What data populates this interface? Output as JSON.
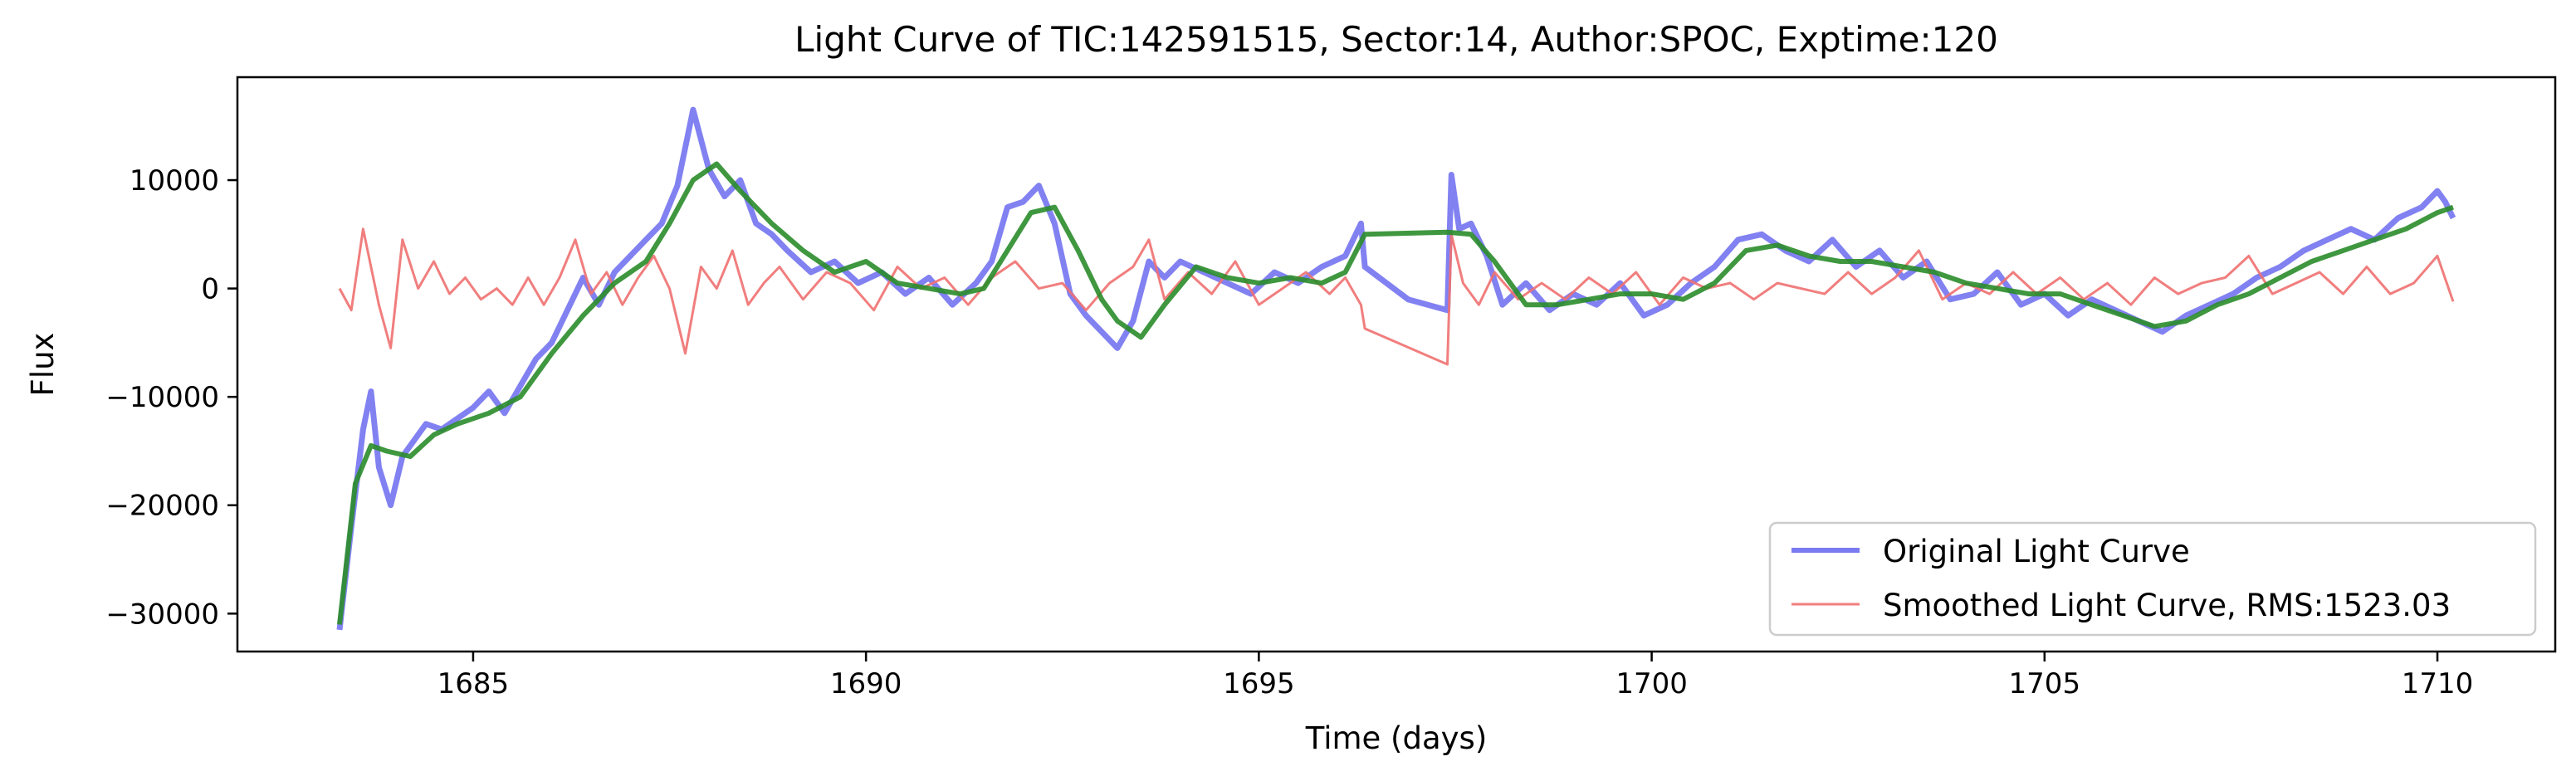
{
  "chart_data": {
    "type": "line",
    "title": "Light Curve of TIC:142591515, Sector:14, Author:SPOC, Exptime:120",
    "xlabel": "Time (days)",
    "ylabel": "Flux",
    "xlim": [
      1682.0,
      1711.5
    ],
    "ylim": [
      -33500,
      19500
    ],
    "xticks": [
      1685,
      1690,
      1695,
      1700,
      1705,
      1710
    ],
    "xtick_labels": [
      "1685",
      "1690",
      "1695",
      "1700",
      "1705",
      "1710"
    ],
    "yticks": [
      -30000,
      -20000,
      -10000,
      0,
      10000
    ],
    "ytick_labels": [
      "−30000",
      "−20000",
      "−10000",
      "0",
      "10000"
    ],
    "grid": false,
    "legend_position": "lower-right",
    "series": [
      {
        "name": "Original Light Curve",
        "color": "#6b6bf0",
        "x": [
          1683.3,
          1683.45,
          1683.6,
          1683.7,
          1683.8,
          1683.95,
          1684.1,
          1684.25,
          1684.4,
          1684.6,
          1684.8,
          1685.0,
          1685.2,
          1685.4,
          1685.6,
          1685.8,
          1686.0,
          1686.2,
          1686.4,
          1686.6,
          1686.8,
          1687.0,
          1687.2,
          1687.4,
          1687.6,
          1687.8,
          1688.0,
          1688.2,
          1688.4,
          1688.6,
          1688.8,
          1689.0,
          1689.3,
          1689.6,
          1689.9,
          1690.2,
          1690.5,
          1690.8,
          1691.1,
          1691.4,
          1691.6,
          1691.8,
          1692.0,
          1692.2,
          1692.4,
          1692.6,
          1692.8,
          1693.0,
          1693.2,
          1693.4,
          1693.6,
          1693.8,
          1694.0,
          1694.3,
          1694.6,
          1694.9,
          1695.2,
          1695.5,
          1695.8,
          1696.1,
          1696.3,
          1696.35,
          1696.9,
          1697.4,
          1697.45,
          1697.55,
          1697.7,
          1697.9,
          1698.1,
          1698.4,
          1698.7,
          1699.0,
          1699.3,
          1699.6,
          1699.9,
          1700.2,
          1700.5,
          1700.8,
          1701.1,
          1701.4,
          1701.7,
          1702.0,
          1702.3,
          1702.6,
          1702.9,
          1703.2,
          1703.5,
          1703.8,
          1704.1,
          1704.4,
          1704.7,
          1705.0,
          1705.3,
          1705.6,
          1705.9,
          1706.2,
          1706.5,
          1706.8,
          1707.1,
          1707.4,
          1707.7,
          1708.0,
          1708.3,
          1708.6,
          1708.9,
          1709.2,
          1709.5,
          1709.8,
          1710.0,
          1710.1,
          1710.2
        ],
        "y": [
          -31500,
          -22000,
          -13000,
          -9500,
          -16500,
          -20000,
          -15500,
          -14000,
          -12500,
          -13000,
          -12000,
          -11000,
          -9500,
          -11500,
          -9000,
          -6500,
          -5000,
          -2000,
          1000,
          -1500,
          1500,
          3000,
          4500,
          6000,
          9500,
          16500,
          11000,
          8500,
          10000,
          6000,
          5000,
          3500,
          1500,
          2500,
          500,
          1500,
          -500,
          1000,
          -1500,
          500,
          2500,
          7500,
          8000,
          9500,
          6000,
          -500,
          -2500,
          -4000,
          -5500,
          -3000,
          2500,
          1000,
          2500,
          1500,
          500,
          -500,
          1500,
          500,
          2000,
          3000,
          6000,
          2000,
          -1000,
          -2000,
          10500,
          5500,
          6000,
          3000,
          -1500,
          500,
          -2000,
          -500,
          -1500,
          500,
          -2500,
          -1500,
          500,
          2000,
          4500,
          5000,
          3500,
          2500,
          4500,
          2000,
          3500,
          1000,
          2500,
          -1000,
          -500,
          1500,
          -1500,
          -500,
          -2500,
          -1000,
          -2000,
          -3000,
          -4000,
          -2500,
          -1500,
          -500,
          1000,
          2000,
          3500,
          4500,
          5500,
          4500,
          6500,
          7500,
          9000,
          8000,
          6500
        ]
      },
      {
        "name": "Smoothed Light Curve, RMS:1523.03",
        "color": "#f07070",
        "x": [
          1683.3,
          1683.45,
          1683.6,
          1683.8,
          1683.95,
          1684.1,
          1684.3,
          1684.5,
          1684.7,
          1684.9,
          1685.1,
          1685.3,
          1685.5,
          1685.7,
          1685.9,
          1686.1,
          1686.3,
          1686.5,
          1686.7,
          1686.9,
          1687.1,
          1687.3,
          1687.5,
          1687.7,
          1687.9,
          1688.1,
          1688.3,
          1688.5,
          1688.7,
          1688.9,
          1689.2,
          1689.5,
          1689.8,
          1690.1,
          1690.4,
          1690.7,
          1691.0,
          1691.3,
          1691.6,
          1691.9,
          1692.2,
          1692.5,
          1692.8,
          1693.1,
          1693.4,
          1693.6,
          1693.8,
          1694.1,
          1694.4,
          1694.7,
          1695.0,
          1695.3,
          1695.6,
          1695.9,
          1696.1,
          1696.3,
          1696.35,
          1697.4,
          1697.45,
          1697.6,
          1697.8,
          1698.0,
          1698.3,
          1698.6,
          1698.9,
          1699.2,
          1699.5,
          1699.8,
          1700.1,
          1700.4,
          1700.7,
          1701.0,
          1701.3,
          1701.6,
          1701.9,
          1702.2,
          1702.5,
          1702.8,
          1703.1,
          1703.4,
          1703.7,
          1704.0,
          1704.3,
          1704.6,
          1704.9,
          1705.2,
          1705.5,
          1705.8,
          1706.1,
          1706.4,
          1706.7,
          1707.0,
          1707.3,
          1707.6,
          1707.9,
          1708.2,
          1708.5,
          1708.8,
          1709.1,
          1709.4,
          1709.7,
          1710.0,
          1710.2
        ],
        "y": [
          0,
          -2000,
          5500,
          -1500,
          -5500,
          4500,
          0,
          2500,
          -500,
          1000,
          -1000,
          0,
          -1500,
          1000,
          -1500,
          1000,
          4500,
          -500,
          1500,
          -1500,
          1000,
          3000,
          0,
          -6000,
          2000,
          0,
          3500,
          -1500,
          500,
          2000,
          -1000,
          1500,
          500,
          -2000,
          2000,
          0,
          1000,
          -1500,
          1000,
          2500,
          0,
          500,
          -2000,
          500,
          2000,
          4500,
          -1000,
          1500,
          -500,
          2500,
          -1500,
          0,
          1500,
          -500,
          1000,
          -1500,
          -3700,
          -7000,
          5000,
          500,
          -1500,
          1500,
          -1000,
          500,
          -1000,
          1000,
          -500,
          1500,
          -1500,
          1000,
          0,
          500,
          -1000,
          500,
          0,
          -500,
          1500,
          -500,
          1000,
          3500,
          -1000,
          500,
          -500,
          1500,
          -500,
          1000,
          -1000,
          500,
          -1500,
          1000,
          -500,
          500,
          1000,
          3000,
          -500,
          500,
          1500,
          -500,
          2000,
          -500,
          500,
          3000,
          -1200
        ]
      },
      {
        "color": "#2a8c2a",
        "x": [
          1683.3,
          1683.5,
          1683.7,
          1683.9,
          1684.2,
          1684.5,
          1684.8,
          1685.2,
          1685.6,
          1686.0,
          1686.4,
          1686.8,
          1687.2,
          1687.5,
          1687.8,
          1688.1,
          1688.4,
          1688.8,
          1689.2,
          1689.6,
          1690.0,
          1690.4,
          1690.8,
          1691.2,
          1691.5,
          1691.8,
          1692.1,
          1692.4,
          1692.7,
          1693.0,
          1693.2,
          1693.5,
          1693.8,
          1694.2,
          1694.6,
          1695.0,
          1695.4,
          1695.8,
          1696.1,
          1696.35,
          1697.4,
          1697.7,
          1698.0,
          1698.4,
          1698.8,
          1699.2,
          1699.6,
          1700.0,
          1700.4,
          1700.8,
          1701.2,
          1701.6,
          1702.0,
          1702.4,
          1702.8,
          1703.2,
          1703.6,
          1704.0,
          1704.4,
          1704.8,
          1705.2,
          1705.6,
          1706.0,
          1706.4,
          1706.8,
          1707.2,
          1707.6,
          1708.0,
          1708.4,
          1708.8,
          1709.2,
          1709.6,
          1710.0,
          1710.2
        ],
        "y": [
          -31000,
          -18000,
          -14500,
          -15000,
          -15500,
          -13500,
          -12500,
          -11500,
          -10000,
          -6000,
          -2500,
          500,
          2500,
          6000,
          10000,
          11500,
          9000,
          6000,
          3500,
          1500,
          2500,
          500,
          0,
          -500,
          0,
          3500,
          7000,
          7500,
          3500,
          -1000,
          -3000,
          -4500,
          -1500,
          2000,
          1000,
          500,
          1000,
          500,
          1500,
          5000,
          5200,
          5000,
          2500,
          -1500,
          -1500,
          -1000,
          -500,
          -500,
          -1000,
          500,
          3500,
          4000,
          3000,
          2500,
          2500,
          2000,
          1500,
          500,
          0,
          -500,
          -500,
          -1500,
          -2500,
          -3500,
          -3000,
          -1500,
          -500,
          1000,
          2500,
          3500,
          4500,
          5500,
          7000,
          7500
        ]
      }
    ]
  }
}
